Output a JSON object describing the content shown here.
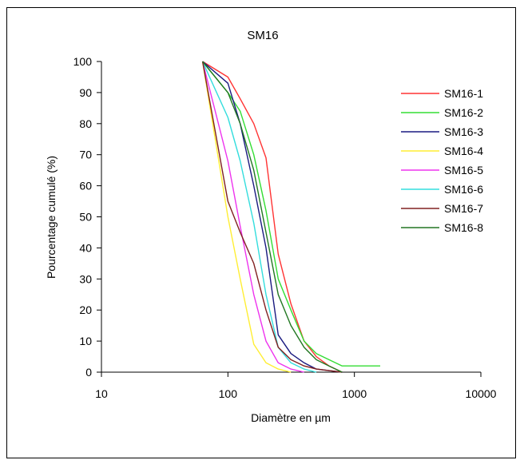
{
  "chart_data": {
    "type": "line",
    "title": "SM16",
    "xlabel": "Diamètre en µm",
    "ylabel": "Pourcentage cumulé (%)",
    "x_scale": "log",
    "xlim": [
      10,
      10000
    ],
    "ylim": [
      0,
      100
    ],
    "x_ticks": [
      "10",
      "100",
      "1000",
      "10000"
    ],
    "y_ticks": [
      "0",
      "10",
      "20",
      "30",
      "40",
      "50",
      "60",
      "70",
      "80",
      "90",
      "100"
    ],
    "grid": false,
    "legend_position": "right",
    "series": [
      {
        "name": "SM16-1",
        "color": "#ff3333",
        "x": [
          63,
          100,
          125,
          160,
          200,
          250,
          315,
          400,
          500,
          630,
          800
        ],
        "y": [
          100,
          95,
          88,
          80,
          69,
          38,
          22,
          10,
          5,
          2,
          0
        ]
      },
      {
        "name": "SM16-2",
        "color": "#33dd33",
        "x": [
          63,
          100,
          125,
          160,
          200,
          250,
          315,
          400,
          500,
          630,
          800,
          1000,
          1600
        ],
        "y": [
          100,
          90,
          84,
          70,
          52,
          30,
          20,
          10,
          6,
          4,
          2,
          2,
          2
        ]
      },
      {
        "name": "SM16-3",
        "color": "#1a1a80",
        "x": [
          63,
          100,
          125,
          160,
          200,
          250,
          315,
          400,
          500,
          630,
          800
        ],
        "y": [
          100,
          93,
          80,
          60,
          40,
          12,
          6,
          3,
          1,
          0.5,
          0
        ]
      },
      {
        "name": "SM16-4",
        "color": "#ffee33",
        "x": [
          63,
          100,
          125,
          160,
          200,
          250,
          315
        ],
        "y": [
          100,
          50,
          30,
          9,
          3,
          1,
          0
        ]
      },
      {
        "name": "SM16-5",
        "color": "#ee33ee",
        "x": [
          63,
          100,
          125,
          160,
          200,
          250,
          315,
          400
        ],
        "y": [
          100,
          68,
          47,
          25,
          10,
          3,
          1,
          0
        ]
      },
      {
        "name": "SM16-6",
        "color": "#33dddd",
        "x": [
          63,
          100,
          125,
          160,
          200,
          250,
          315,
          400,
          500
        ],
        "y": [
          100,
          82,
          68,
          48,
          25,
          8,
          3,
          1,
          0
        ]
      },
      {
        "name": "SM16-7",
        "color": "#802020",
        "x": [
          63,
          100,
          125,
          160,
          200,
          250,
          315,
          400,
          500,
          630,
          800
        ],
        "y": [
          100,
          55,
          45,
          35,
          20,
          8,
          4,
          2,
          1,
          0.5,
          0
        ]
      },
      {
        "name": "SM16-8",
        "color": "#227722",
        "x": [
          63,
          100,
          125,
          160,
          200,
          250,
          315,
          400,
          500,
          630,
          800
        ],
        "y": [
          100,
          90,
          80,
          65,
          45,
          25,
          15,
          8,
          4,
          2,
          0
        ]
      }
    ]
  }
}
